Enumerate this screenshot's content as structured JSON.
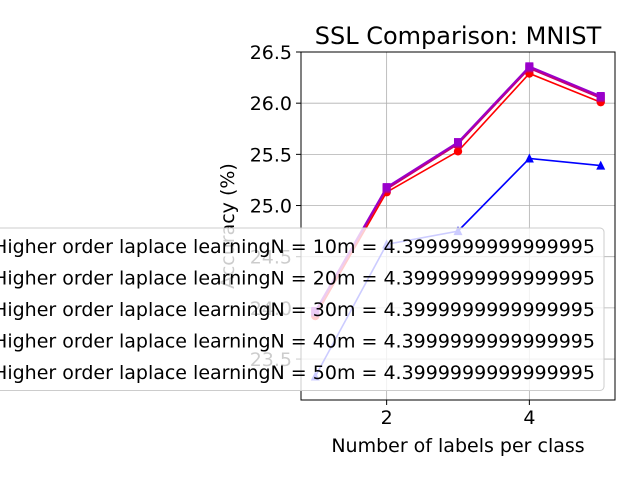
{
  "chart_data": {
    "type": "line",
    "title": "SSL Comparison: MNIST",
    "xlabel": "Number of labels per class",
    "ylabel": "Accuracy (%)",
    "xlim": [
      0.8,
      5.2
    ],
    "ylim": [
      23.1,
      26.5
    ],
    "x_ticks": [
      2,
      4
    ],
    "y_ticks": [
      23.5,
      24.0,
      24.5,
      25.0,
      25.5,
      26.0,
      26.5
    ],
    "y_tick_labels": [
      "23.5",
      "24.0",
      "24.5",
      "25.0",
      "25.5",
      "26.0",
      "26.5"
    ],
    "grid": true,
    "legend_position": "center-left (extends beyond plot)",
    "x": [
      1,
      2,
      3,
      4,
      5
    ],
    "series": [
      {
        "name": "Higher order laplace learningN = 10m = 4.3999999999999995",
        "color": "#0000ff",
        "marker": "triangle",
        "values": [
          23.33,
          24.62,
          24.75,
          25.46,
          25.39
        ]
      },
      {
        "name": "Higher order laplace learningN = 20m = 4.3999999999999995",
        "color": "#ff0000",
        "marker": "circle",
        "values": [
          23.92,
          25.13,
          25.53,
          26.29,
          26.01
        ]
      },
      {
        "name": "Higher order laplace learningN = 30m = 4.3999999999999995",
        "color": "#cc0066",
        "marker": "square",
        "values": [
          23.95,
          25.16,
          25.6,
          26.34,
          26.05
        ]
      },
      {
        "name": "Higher order laplace learningN = 40m = 4.3999999999999995",
        "color": "#b30099",
        "marker": "square",
        "values": [
          23.96,
          25.17,
          25.61,
          26.35,
          26.06
        ]
      },
      {
        "name": "Higher order laplace learningN = 50m = 4.3999999999999995",
        "color": "#9900cc",
        "marker": "square",
        "values": [
          23.97,
          25.18,
          25.62,
          26.36,
          26.07
        ]
      }
    ]
  }
}
